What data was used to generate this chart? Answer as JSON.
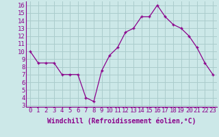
{
  "x": [
    0,
    1,
    2,
    3,
    4,
    5,
    6,
    7,
    8,
    9,
    10,
    11,
    12,
    13,
    14,
    15,
    16,
    17,
    18,
    19,
    20,
    21,
    22,
    23
  ],
  "y": [
    10.0,
    8.5,
    8.5,
    8.5,
    7.0,
    7.0,
    7.0,
    4.0,
    3.5,
    7.5,
    9.5,
    10.5,
    12.5,
    13.0,
    14.5,
    14.5,
    16.0,
    14.5,
    13.5,
    13.0,
    12.0,
    10.5,
    8.5,
    7.0
  ],
  "line_color": "#8B008B",
  "marker": "+",
  "bg_color": "#cce8e8",
  "grid_color": "#aacccc",
  "xlabel": "Windchill (Refroidissement éolien,°C)",
  "ylabel_ticks": [
    3,
    4,
    5,
    6,
    7,
    8,
    9,
    10,
    11,
    12,
    13,
    14,
    15,
    16
  ],
  "ylim": [
    2.8,
    16.5
  ],
  "xlim": [
    -0.5,
    23.5
  ],
  "xlabel_fontsize": 7,
  "tick_fontsize": 6.5
}
